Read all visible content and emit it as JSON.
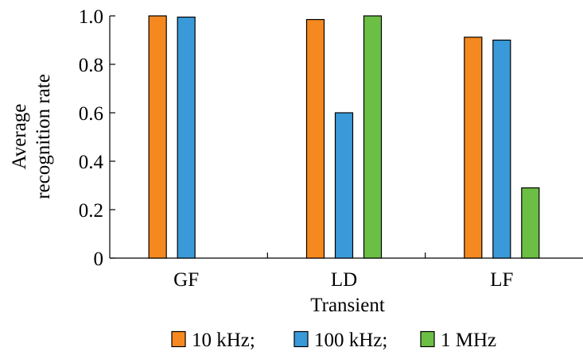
{
  "chart_data": {
    "type": "bar",
    "title": "",
    "xlabel": "Transient",
    "ylabel": [
      "Average",
      "recognition rate"
    ],
    "categories": [
      "GF",
      "LD",
      "LF"
    ],
    "ylim": [
      0,
      1.0
    ],
    "yticks": [
      "0",
      "0.2",
      "0.4",
      "0.6",
      "0.8",
      "1.0"
    ],
    "grid": false,
    "legend_position": "bottom",
    "series": [
      {
        "name": "10 kHz;",
        "color": "#f5891f",
        "values": [
          1.0,
          0.985,
          0.912
        ]
      },
      {
        "name": "100 kHz;",
        "color": "#3a9ad9",
        "values": [
          0.995,
          0.6,
          0.9
        ]
      },
      {
        "name": "1 MHz",
        "color": "#6bbf45",
        "values": [
          null,
          1.0,
          0.29
        ]
      }
    ]
  }
}
